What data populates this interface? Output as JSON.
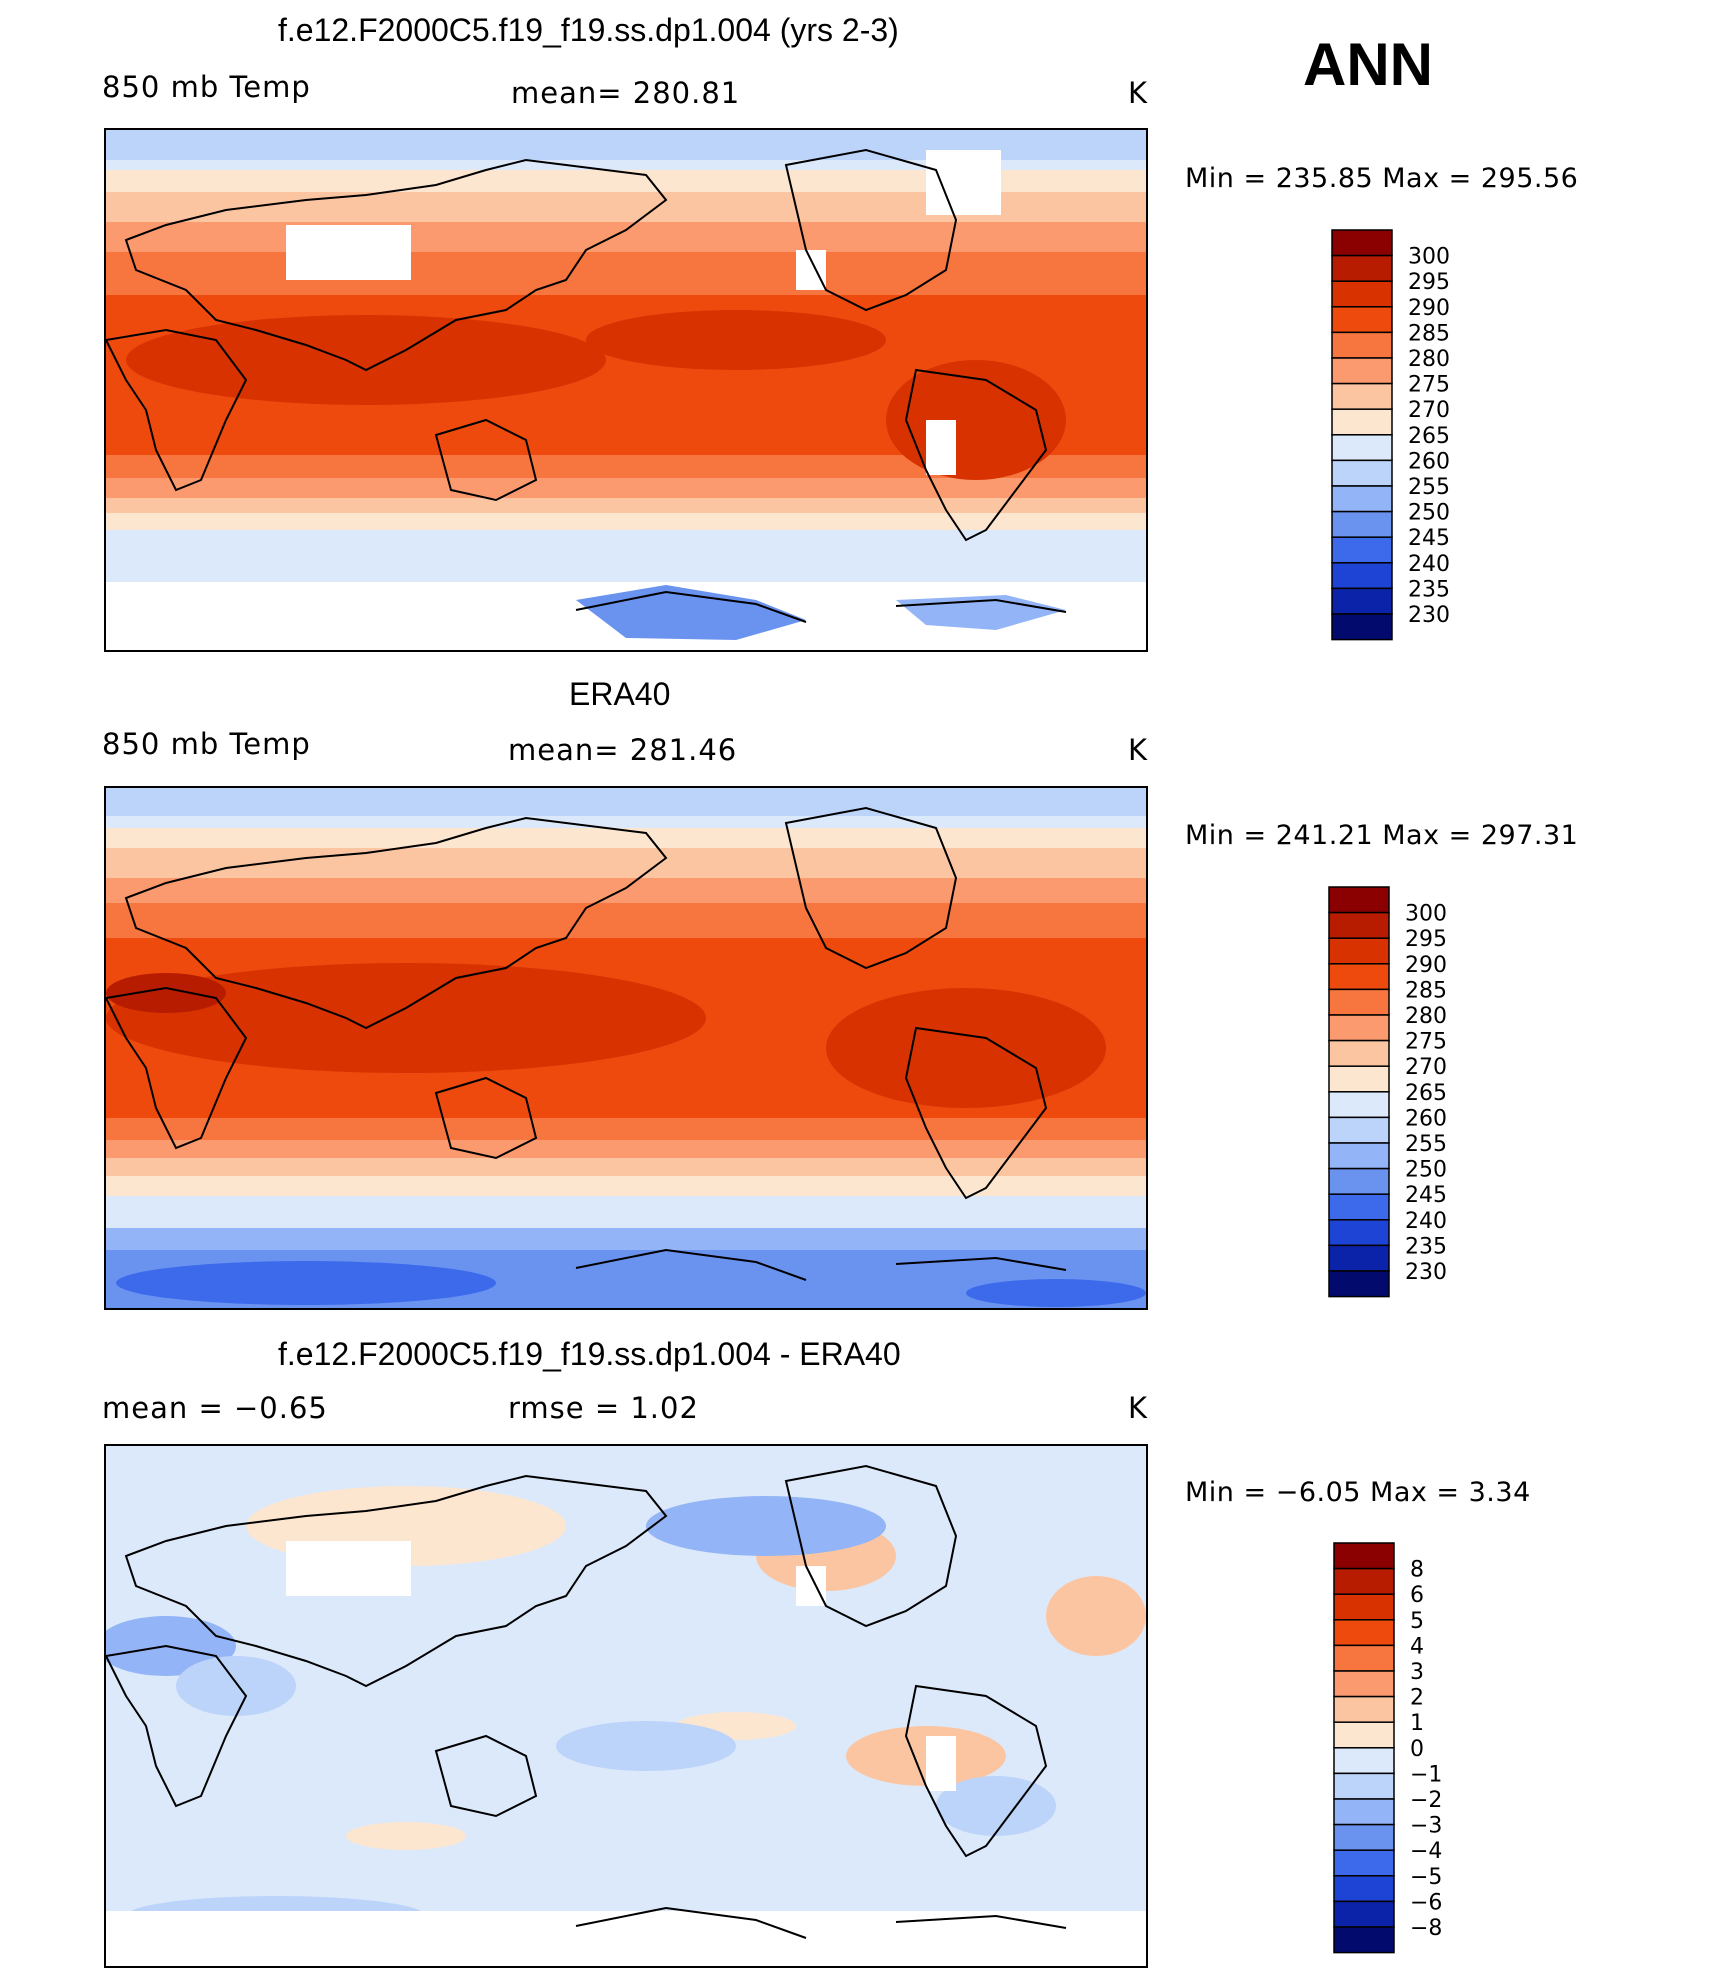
{
  "ann_label": "ANN",
  "panels": [
    {
      "title": "f.e12.F2000C5.f19_f19.ss.dp1.004 (yrs 2-3)",
      "left_label": "850 mb Temp",
      "center_label": "mean=  280.81",
      "right_label": "K",
      "minmax": "Min  =  235.85  Max  =  295.56"
    },
    {
      "title": "ERA40",
      "left_label": "850 mb Temp",
      "center_label": "mean=  281.46",
      "right_label": "K",
      "minmax": "Min  =  241.21  Max  =  297.31"
    },
    {
      "title": "f.e12.F2000C5.f19_f19.ss.dp1.004 - ERA40",
      "left_label": "mean  =    −0.65",
      "center_label": "rmse  =     1.02",
      "right_label": "K",
      "minmax": "Min  =    −6.05  Max  =      3.34"
    }
  ],
  "colorbars": {
    "temperature": {
      "labels": [
        "300",
        "295",
        "290",
        "285",
        "280",
        "275",
        "270",
        "265",
        "260",
        "255",
        "250",
        "245",
        "240",
        "235",
        "230"
      ],
      "colors": [
        "#8b0000",
        "#b81c00",
        "#d83200",
        "#ee4a0e",
        "#f77640",
        "#fb9a6e",
        "#fcc5a2",
        "#fde6d0",
        "#dce9fa",
        "#bcd3fa",
        "#93b4f6",
        "#6a93f0",
        "#3d6aeb",
        "#1e44d6",
        "#0b23a8",
        "#030a6e"
      ]
    },
    "difference": {
      "labels": [
        "8",
        "6",
        "5",
        "4",
        "3",
        "2",
        "1",
        "0",
        "−1",
        "−2",
        "−3",
        "−4",
        "−5",
        "−6",
        "−8"
      ],
      "colors": [
        "#8b0000",
        "#b81c00",
        "#d83200",
        "#ee4a0e",
        "#f77640",
        "#fb9a6e",
        "#fcc5a2",
        "#fde6d0",
        "#dce9fa",
        "#bcd3fa",
        "#93b4f6",
        "#6a93f0",
        "#3d6aeb",
        "#1e44d6",
        "#0b23a8",
        "#030a6e"
      ]
    }
  }
}
